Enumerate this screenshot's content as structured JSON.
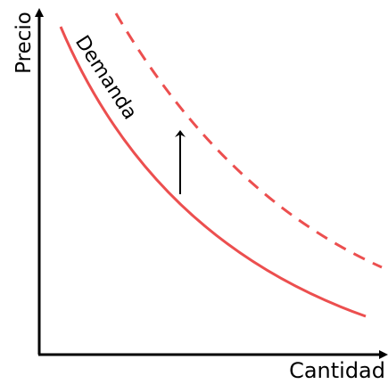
{
  "axes": {
    "y_label": "Precio",
    "x_label": "Cantidad"
  },
  "curve_label": "Demanda"
}
